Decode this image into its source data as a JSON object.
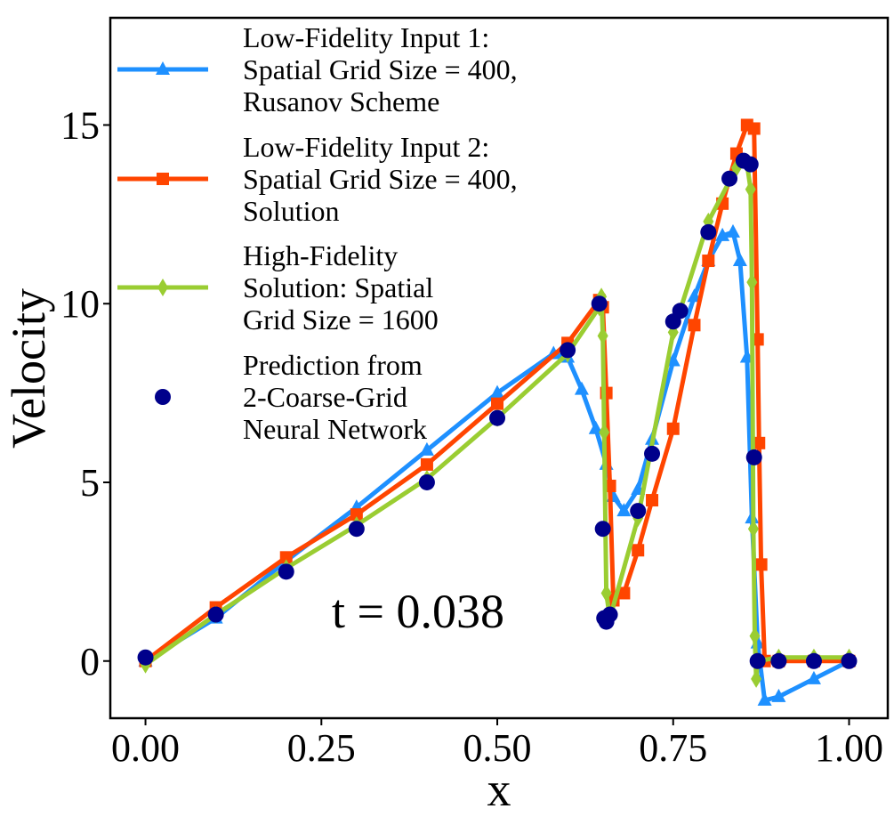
{
  "chart_data": {
    "type": "line",
    "xlabel": "x",
    "ylabel": "Velocity",
    "xlim": [
      -0.05,
      1.055
    ],
    "ylim": [
      -1.6,
      18.0
    ],
    "xticks": [
      "0.00",
      "0.25",
      "0.50",
      "0.75",
      "1.00"
    ],
    "xtick_values": [
      0,
      0.25,
      0.5,
      0.75,
      1.0
    ],
    "yticks": [
      "0",
      "5",
      "10",
      "15"
    ],
    "ytick_values": [
      0,
      5,
      10,
      15
    ],
    "annotation": "t = 0.038",
    "grid": false,
    "legend_position": "top-left",
    "series": [
      {
        "name": "Low-Fidelity Input 1: Spatial Grid Size = 400, Rusanov Scheme",
        "color": "#1e90ff",
        "marker": "triangle",
        "x": [
          0.0,
          0.1,
          0.2,
          0.3,
          0.4,
          0.5,
          0.58,
          0.6,
          0.62,
          0.64,
          0.655,
          0.665,
          0.68,
          0.7,
          0.72,
          0.75,
          0.78,
          0.8,
          0.82,
          0.835,
          0.845,
          0.855,
          0.862,
          0.87,
          0.88,
          0.9,
          0.95,
          1.0
        ],
        "y": [
          0.0,
          1.2,
          2.8,
          4.3,
          5.9,
          7.5,
          8.6,
          8.5,
          7.6,
          6.5,
          5.5,
          4.6,
          4.2,
          4.8,
          6.2,
          8.4,
          10.2,
          11.2,
          11.9,
          12.0,
          11.2,
          8.5,
          4.0,
          0.5,
          -1.1,
          -1.0,
          -0.5,
          0.0
        ]
      },
      {
        "name": "Low-Fidelity Input 2: Spatial Grid Size = 400, Solution",
        "color": "#ff4500",
        "marker": "square",
        "x": [
          0.0,
          0.1,
          0.2,
          0.3,
          0.4,
          0.5,
          0.6,
          0.645,
          0.65,
          0.655,
          0.66,
          0.665,
          0.68,
          0.7,
          0.72,
          0.75,
          0.78,
          0.8,
          0.82,
          0.84,
          0.855,
          0.865,
          0.87,
          0.872,
          0.875,
          0.88,
          0.9,
          0.95,
          1.0
        ],
        "y": [
          0.0,
          1.5,
          2.9,
          4.1,
          5.5,
          7.2,
          8.9,
          10.1,
          9.9,
          7.5,
          4.9,
          1.7,
          1.9,
          3.1,
          4.5,
          6.5,
          9.4,
          11.2,
          12.8,
          14.2,
          15.0,
          14.9,
          9.0,
          6.1,
          2.7,
          0.0,
          0.0,
          0.0,
          0.0
        ]
      },
      {
        "name": "High-Fidelity Solution: Spatial Grid Size = 1600",
        "color": "#9acd32",
        "marker": "diamond",
        "x": [
          0.0,
          0.1,
          0.2,
          0.3,
          0.4,
          0.5,
          0.6,
          0.645,
          0.648,
          0.65,
          0.652,
          0.655,
          0.66,
          0.7,
          0.75,
          0.8,
          0.84,
          0.855,
          0.86,
          0.862,
          0.864,
          0.866,
          0.868,
          0.87,
          0.9,
          0.95,
          1.0
        ],
        "y": [
          -0.1,
          1.3,
          2.6,
          3.8,
          5.1,
          6.8,
          8.6,
          9.9,
          10.2,
          9.1,
          6.4,
          1.9,
          1.2,
          4.0,
          9.2,
          12.3,
          13.8,
          13.9,
          13.2,
          10.6,
          3.7,
          0.7,
          -0.5,
          0.0,
          0.1,
          0.1,
          0.1
        ]
      },
      {
        "name": "Prediction from 2-Coarse-Grid Neural Network",
        "color": "#00008b",
        "marker": "circle",
        "x": [
          0.0,
          0.1,
          0.2,
          0.3,
          0.4,
          0.5,
          0.6,
          0.645,
          0.65,
          0.652,
          0.655,
          0.66,
          0.7,
          0.72,
          0.75,
          0.76,
          0.8,
          0.83,
          0.85,
          0.86,
          0.865,
          0.87,
          0.9,
          0.95,
          1.0
        ],
        "y": [
          0.1,
          1.3,
          2.5,
          3.7,
          5.0,
          6.8,
          8.7,
          10.0,
          3.7,
          1.2,
          1.1,
          1.3,
          4.2,
          5.8,
          9.5,
          9.8,
          12.0,
          13.5,
          14.0,
          13.9,
          5.7,
          0.0,
          0.0,
          0.0,
          0.0
        ]
      }
    ]
  },
  "legend": [
    {
      "lines": [
        "Low-Fidelity Input 1:",
        "Spatial Grid Size = 400,",
        "Rusanov Scheme"
      ]
    },
    {
      "lines": [
        "Low-Fidelity Input 2:",
        "Spatial Grid Size = 400,",
        "Solution"
      ]
    },
    {
      "lines": [
        "High-Fidelity",
        "Solution: Spatial",
        "Grid Size = 1600"
      ]
    },
    {
      "lines": [
        "Prediction from",
        "2-Coarse-Grid",
        "Neural Network"
      ]
    }
  ]
}
